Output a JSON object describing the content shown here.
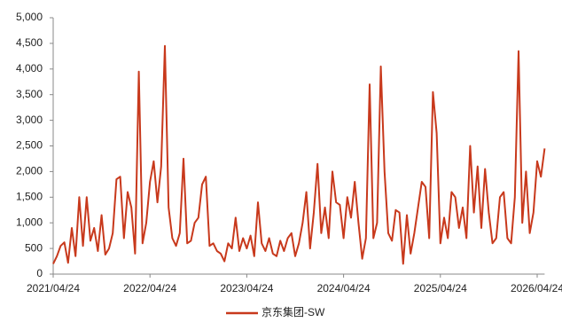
{
  "chart_data": {
    "type": "line",
    "categories": [
      "2021/04/24",
      null,
      null,
      null,
      null,
      null,
      null,
      null,
      null,
      null,
      null,
      null,
      null,
      null,
      null,
      null,
      null,
      null,
      null,
      null,
      null,
      null,
      null,
      null,
      null,
      null,
      "2022/04/24",
      null,
      null,
      null,
      null,
      null,
      null,
      null,
      null,
      null,
      null,
      null,
      null,
      null,
      null,
      null,
      null,
      null,
      null,
      null,
      null,
      null,
      null,
      null,
      null,
      null,
      "2023/04/24",
      null,
      null,
      null,
      null,
      null,
      null,
      null,
      null,
      null,
      null,
      null,
      null,
      null,
      null,
      null,
      null,
      null,
      null,
      null,
      null,
      null,
      null,
      null,
      null,
      null,
      "2024/04/24",
      null,
      null,
      null,
      null,
      null,
      null,
      null,
      null,
      null,
      null,
      null,
      null,
      null,
      null,
      null,
      null,
      null,
      null,
      null,
      null,
      null,
      null,
      null,
      null,
      null,
      "2025/04/24",
      null,
      null,
      null,
      null,
      null,
      null,
      null,
      null,
      null,
      null,
      null,
      null,
      null,
      null,
      null,
      null,
      null,
      null,
      null,
      null,
      null,
      null,
      null,
      null,
      null,
      "2026/04/24",
      null,
      null
    ],
    "series": [
      {
        "name": "京东集团-SW",
        "color": "#c8391c",
        "values": [
          200,
          350,
          550,
          620,
          220,
          900,
          350,
          1500,
          550,
          1500,
          650,
          900,
          450,
          1150,
          380,
          500,
          800,
          1850,
          1900,
          700,
          1600,
          1300,
          400,
          3950,
          600,
          1000,
          1800,
          2200,
          1400,
          2100,
          4450,
          1300,
          700,
          550,
          800,
          2250,
          600,
          650,
          1000,
          1100,
          1750,
          1900,
          550,
          600,
          450,
          400,
          250,
          600,
          500,
          1100,
          450,
          700,
          500,
          750,
          350,
          1400,
          600,
          450,
          700,
          400,
          350,
          650,
          450,
          700,
          800,
          350,
          600,
          1000,
          1600,
          500,
          1200,
          2150,
          800,
          1300,
          700,
          2000,
          1400,
          1350,
          700,
          1500,
          1100,
          1800,
          1000,
          300,
          700,
          3700,
          700,
          1000,
          4050,
          2000,
          800,
          650,
          1250,
          1200,
          200,
          1150,
          400,
          800,
          1300,
          1800,
          1700,
          700,
          3550,
          2750,
          600,
          1100,
          700,
          1600,
          1500,
          900,
          1300,
          700,
          2500,
          1200,
          2100,
          900,
          2050,
          1200,
          600,
          700,
          1500,
          1600,
          700,
          600,
          1500,
          4350,
          1000,
          2000,
          800,
          1200,
          2200,
          1900,
          2450
        ]
      }
    ],
    "ylim": [
      0,
      5000
    ],
    "yticks": [
      0,
      500,
      {
        "value": 1000,
        "label": "1,000"
      },
      {
        "value": 1500,
        "label": "1,500"
      },
      {
        "value": 2000,
        "label": "2,000"
      },
      {
        "value": 2500,
        "label": "2,500"
      },
      {
        "value": 3000,
        "label": "3,000"
      },
      {
        "value": 3500,
        "label": "3,500"
      },
      {
        "value": 4000,
        "label": "4,000"
      },
      {
        "value": 4500,
        "label": "4,500"
      },
      {
        "value": 5000,
        "label": "5,000"
      }
    ],
    "grid": false,
    "legend": "bottom"
  }
}
